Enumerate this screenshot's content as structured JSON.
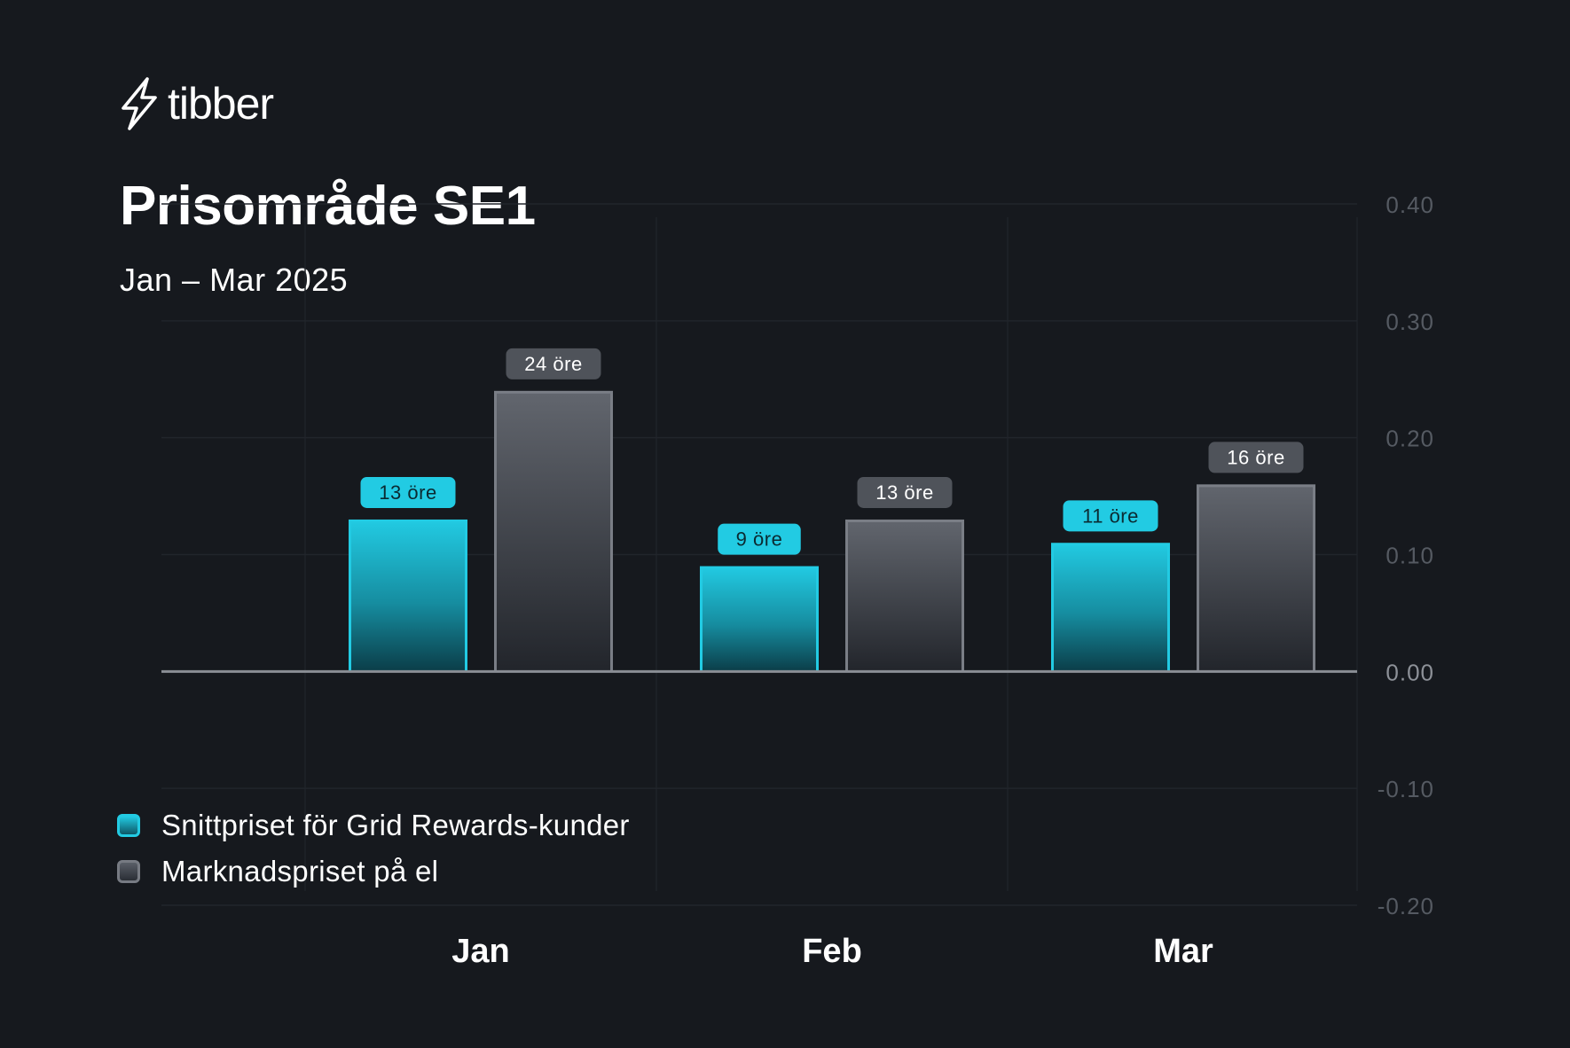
{
  "brand": {
    "name": "tibber",
    "icon": "lightning-bolt-icon"
  },
  "title": "Prisområde SE1",
  "subtitle": "Jan – Mar 2025",
  "colors": {
    "background": "#16191e",
    "series_primary": "#22cbe3",
    "series_secondary": "#7a7e86",
    "badge_primary": "#22cbe3",
    "badge_secondary": "#4f535a",
    "axis_text": "#5c6068"
  },
  "legend": [
    {
      "label": "Snittpriset för Grid Rewards-kunder"
    },
    {
      "label": "Marknadspriset på el"
    }
  ],
  "chart_data": {
    "type": "bar",
    "title": "Prisområde SE1",
    "subtitle": "Jan – Mar 2025",
    "categories": [
      "Jan",
      "Feb",
      "Mar"
    ],
    "series": [
      {
        "name": "Snittpriset för Grid Rewards-kunder",
        "values": [
          0.13,
          0.09,
          0.11
        ],
        "labels": [
          "13 öre",
          "9 öre",
          "11 öre"
        ]
      },
      {
        "name": "Marknadspriset på el",
        "values": [
          0.24,
          0.13,
          0.16
        ],
        "labels": [
          "24 öre",
          "13 öre",
          "16 öre"
        ]
      }
    ],
    "ylim": [
      -0.2,
      0.4
    ],
    "yticks": [
      "0.40",
      "0.30",
      "0.20",
      "0.10",
      "0.00",
      "-0.10",
      "-0.20"
    ],
    "ytick_values": [
      0.4,
      0.3,
      0.2,
      0.1,
      0.0,
      -0.1,
      -0.2
    ],
    "y_axis_position": "right",
    "xlabel": "",
    "ylabel": "",
    "grid": true,
    "legend_position": "bottom-left"
  }
}
